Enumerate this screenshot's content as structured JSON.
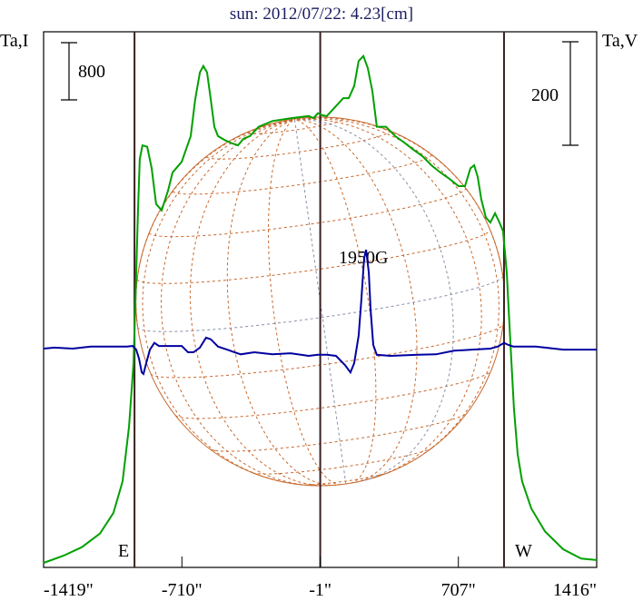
{
  "chart_data": {
    "type": "line",
    "title": "sun: 2012/07/22: 4.23[cm]",
    "left_axis_label": "Ta,I",
    "right_axis_label": "Ta,V",
    "xlabel": "",
    "xlim": [
      -1419,
      1416
    ],
    "x_tick_labels": [
      "-1419\"",
      "-710\"",
      "-1\"",
      "707\"",
      "1416\""
    ],
    "x_tick_values": [
      -1419,
      -710,
      -1,
      707,
      1416
    ],
    "limb_markers": {
      "east": {
        "label": "E",
        "x": -953
      },
      "center": {
        "x": -1
      },
      "west": {
        "label": "W",
        "x": 941
      }
    },
    "scale_bars": {
      "intensity": {
        "label": "800",
        "value": 800
      },
      "polarization": {
        "label": "200",
        "value": 200
      }
    },
    "annotation": {
      "text": "1950G",
      "x": 234
    },
    "solar_radius_arcsec": 945,
    "colors": {
      "intensity": "#00a000",
      "polarization": "#0000a0",
      "limb_lines": "#3a2020",
      "grid": "#c8682c",
      "grid_alt": "#8890a8",
      "title": "#1c1c60"
    },
    "series": [
      {
        "name": "I",
        "axis": "left",
        "x": [
          -1419,
          -1317,
          -1223,
          -1130,
          -1061,
          -1014,
          -981,
          -958,
          -944,
          -935,
          -926,
          -912,
          -888,
          -865,
          -842,
          -814,
          -781,
          -758,
          -711,
          -665,
          -642,
          -618,
          -600,
          -581,
          -562,
          -544,
          -525,
          -488,
          -455,
          -423,
          -395,
          -362,
          -316,
          -246,
          -153,
          -60,
          -36,
          -13,
          10,
          33,
          80,
          117,
          145,
          173,
          196,
          220,
          243,
          266,
          289,
          313,
          336,
          383,
          429,
          476,
          522,
          569,
          615,
          662,
          708,
          741,
          769,
          788,
          806,
          825,
          848,
          871,
          895,
          918,
          936,
          955,
          974,
          992,
          1011,
          1034,
          1081,
          1151,
          1244,
          1337,
          1416
        ],
        "y": [
          0,
          100,
          220,
          410,
          700,
          1140,
          1910,
          2790,
          4060,
          4950,
          5650,
          5840,
          5820,
          5520,
          5020,
          4930,
          5210,
          5460,
          5610,
          5970,
          6480,
          6860,
          6950,
          6860,
          6480,
          6100,
          5970,
          5910,
          5870,
          5840,
          5930,
          5970,
          6100,
          6180,
          6220,
          6250,
          6220,
          6290,
          6260,
          6250,
          6390,
          6500,
          6500,
          6670,
          7020,
          7090,
          6920,
          6600,
          6100,
          6100,
          6100,
          5970,
          5880,
          5780,
          5690,
          5560,
          5460,
          5370,
          5270,
          5270,
          5520,
          5560,
          5400,
          5080,
          4830,
          4760,
          4890,
          4760,
          4640,
          4060,
          3050,
          2160,
          1520,
          1140,
          760,
          440,
          190,
          60,
          40
        ]
      },
      {
        "name": "V",
        "axis": "right",
        "x": [
          -1419,
          -1363,
          -1270,
          -1177,
          -991,
          -963,
          -944,
          -930,
          -916,
          -907,
          -893,
          -874,
          -851,
          -828,
          -711,
          -679,
          -651,
          -618,
          -586,
          -562,
          -525,
          -479,
          -409,
          -339,
          -246,
          -153,
          -60,
          -13,
          33,
          80,
          126,
          154,
          173,
          196,
          210,
          224,
          234,
          248,
          257,
          271,
          289,
          359,
          499,
          592,
          685,
          778,
          871,
          909,
          941,
          964,
          988,
          1104,
          1244,
          1416
        ],
        "y": [
          0,
          2,
          0,
          4,
          4,
          5,
          -2,
          -19,
          -46,
          -49,
          -28,
          -2,
          11,
          5,
          5,
          -7,
          -7,
          2,
          21,
          18,
          4,
          -2,
          -11,
          -7,
          -11,
          -9,
          -14,
          -12,
          -12,
          -14,
          -32,
          -46,
          -28,
          25,
          95,
          174,
          191,
          147,
          77,
          7,
          -12,
          -14,
          -12,
          -11,
          -4,
          -2,
          0,
          4,
          11,
          7,
          4,
          4,
          -2,
          -2
        ]
      }
    ]
  }
}
